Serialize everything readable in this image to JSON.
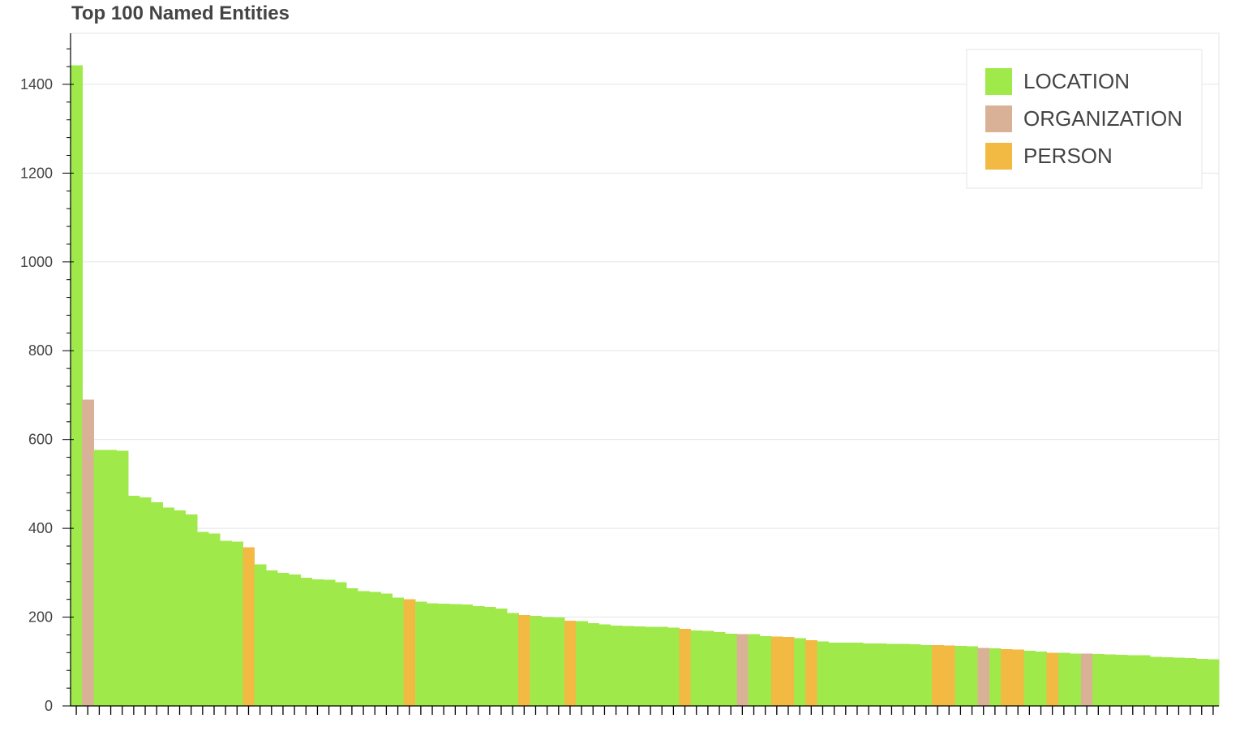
{
  "chart_data": {
    "type": "bar",
    "title": "Top 100 Named Entities",
    "xlabel": "",
    "ylabel": "",
    "ylim": [
      0,
      1515
    ],
    "yticks": [
      0,
      200,
      400,
      600,
      800,
      1000,
      1200,
      1400
    ],
    "grid": true,
    "legend_position": "top-right",
    "categories_hidden": true,
    "series": [
      {
        "name": "LOCATION",
        "color": "#a0e94b"
      },
      {
        "name": "ORGANIZATION",
        "color": "#d8b196"
      },
      {
        "name": "PERSON",
        "color": "#f2b943"
      }
    ],
    "bars": [
      {
        "value": 1443,
        "type": "LOCATION"
      },
      {
        "value": 690,
        "type": "ORGANIZATION"
      },
      {
        "value": 577,
        "type": "LOCATION"
      },
      {
        "value": 577,
        "type": "LOCATION"
      },
      {
        "value": 575,
        "type": "LOCATION"
      },
      {
        "value": 473,
        "type": "LOCATION"
      },
      {
        "value": 470,
        "type": "LOCATION"
      },
      {
        "value": 459,
        "type": "LOCATION"
      },
      {
        "value": 447,
        "type": "LOCATION"
      },
      {
        "value": 440,
        "type": "LOCATION"
      },
      {
        "value": 431,
        "type": "LOCATION"
      },
      {
        "value": 392,
        "type": "LOCATION"
      },
      {
        "value": 388,
        "type": "LOCATION"
      },
      {
        "value": 372,
        "type": "LOCATION"
      },
      {
        "value": 370,
        "type": "LOCATION"
      },
      {
        "value": 357,
        "type": "PERSON"
      },
      {
        "value": 319,
        "type": "LOCATION"
      },
      {
        "value": 305,
        "type": "LOCATION"
      },
      {
        "value": 300,
        "type": "LOCATION"
      },
      {
        "value": 296,
        "type": "LOCATION"
      },
      {
        "value": 289,
        "type": "LOCATION"
      },
      {
        "value": 285,
        "type": "LOCATION"
      },
      {
        "value": 284,
        "type": "LOCATION"
      },
      {
        "value": 279,
        "type": "LOCATION"
      },
      {
        "value": 265,
        "type": "LOCATION"
      },
      {
        "value": 259,
        "type": "LOCATION"
      },
      {
        "value": 257,
        "type": "LOCATION"
      },
      {
        "value": 253,
        "type": "LOCATION"
      },
      {
        "value": 244,
        "type": "LOCATION"
      },
      {
        "value": 240,
        "type": "PERSON"
      },
      {
        "value": 235,
        "type": "LOCATION"
      },
      {
        "value": 231,
        "type": "LOCATION"
      },
      {
        "value": 230,
        "type": "LOCATION"
      },
      {
        "value": 229,
        "type": "LOCATION"
      },
      {
        "value": 228,
        "type": "LOCATION"
      },
      {
        "value": 225,
        "type": "LOCATION"
      },
      {
        "value": 223,
        "type": "LOCATION"
      },
      {
        "value": 219,
        "type": "LOCATION"
      },
      {
        "value": 209,
        "type": "LOCATION"
      },
      {
        "value": 205,
        "type": "PERSON"
      },
      {
        "value": 203,
        "type": "LOCATION"
      },
      {
        "value": 200,
        "type": "LOCATION"
      },
      {
        "value": 199,
        "type": "LOCATION"
      },
      {
        "value": 192,
        "type": "PERSON"
      },
      {
        "value": 191,
        "type": "LOCATION"
      },
      {
        "value": 186,
        "type": "LOCATION"
      },
      {
        "value": 184,
        "type": "LOCATION"
      },
      {
        "value": 181,
        "type": "LOCATION"
      },
      {
        "value": 180,
        "type": "LOCATION"
      },
      {
        "value": 179,
        "type": "LOCATION"
      },
      {
        "value": 178,
        "type": "LOCATION"
      },
      {
        "value": 178,
        "type": "LOCATION"
      },
      {
        "value": 176,
        "type": "LOCATION"
      },
      {
        "value": 174,
        "type": "PERSON"
      },
      {
        "value": 170,
        "type": "LOCATION"
      },
      {
        "value": 169,
        "type": "LOCATION"
      },
      {
        "value": 166,
        "type": "LOCATION"
      },
      {
        "value": 163,
        "type": "LOCATION"
      },
      {
        "value": 162,
        "type": "ORGANIZATION"
      },
      {
        "value": 162,
        "type": "LOCATION"
      },
      {
        "value": 157,
        "type": "LOCATION"
      },
      {
        "value": 156,
        "type": "PERSON"
      },
      {
        "value": 155,
        "type": "PERSON"
      },
      {
        "value": 153,
        "type": "LOCATION"
      },
      {
        "value": 148,
        "type": "PERSON"
      },
      {
        "value": 145,
        "type": "LOCATION"
      },
      {
        "value": 143,
        "type": "LOCATION"
      },
      {
        "value": 143,
        "type": "LOCATION"
      },
      {
        "value": 143,
        "type": "LOCATION"
      },
      {
        "value": 141,
        "type": "LOCATION"
      },
      {
        "value": 141,
        "type": "LOCATION"
      },
      {
        "value": 140,
        "type": "LOCATION"
      },
      {
        "value": 140,
        "type": "LOCATION"
      },
      {
        "value": 139,
        "type": "LOCATION"
      },
      {
        "value": 137,
        "type": "LOCATION"
      },
      {
        "value": 137,
        "type": "PERSON"
      },
      {
        "value": 136,
        "type": "PERSON"
      },
      {
        "value": 135,
        "type": "LOCATION"
      },
      {
        "value": 134,
        "type": "LOCATION"
      },
      {
        "value": 131,
        "type": "ORGANIZATION"
      },
      {
        "value": 130,
        "type": "LOCATION"
      },
      {
        "value": 128,
        "type": "PERSON"
      },
      {
        "value": 127,
        "type": "PERSON"
      },
      {
        "value": 124,
        "type": "LOCATION"
      },
      {
        "value": 122,
        "type": "LOCATION"
      },
      {
        "value": 120,
        "type": "PERSON"
      },
      {
        "value": 120,
        "type": "LOCATION"
      },
      {
        "value": 118,
        "type": "LOCATION"
      },
      {
        "value": 118,
        "type": "ORGANIZATION"
      },
      {
        "value": 117,
        "type": "LOCATION"
      },
      {
        "value": 116,
        "type": "LOCATION"
      },
      {
        "value": 115,
        "type": "LOCATION"
      },
      {
        "value": 114,
        "type": "LOCATION"
      },
      {
        "value": 114,
        "type": "LOCATION"
      },
      {
        "value": 111,
        "type": "LOCATION"
      },
      {
        "value": 110,
        "type": "LOCATION"
      },
      {
        "value": 109,
        "type": "LOCATION"
      },
      {
        "value": 108,
        "type": "LOCATION"
      },
      {
        "value": 106,
        "type": "LOCATION"
      },
      {
        "value": 105,
        "type": "LOCATION"
      }
    ]
  }
}
